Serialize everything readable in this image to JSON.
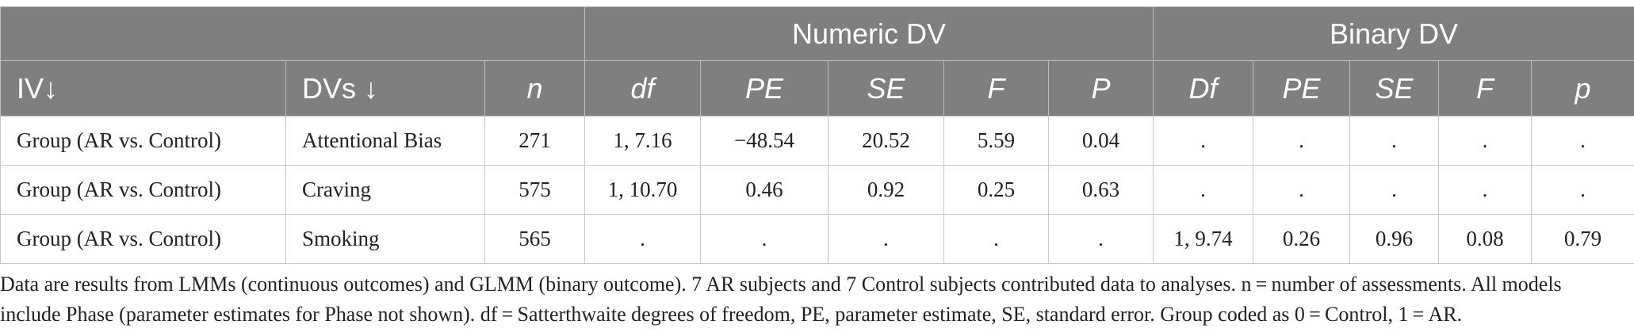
{
  "table": {
    "group_headers": {
      "numeric": "Numeric DV",
      "binary": "Binary DV"
    },
    "columns": [
      "IV↓",
      "DVs ↓",
      "n",
      "df",
      "PE",
      "SE",
      "F",
      "P",
      "Df",
      "PE",
      "SE",
      "F",
      "p"
    ],
    "rows": [
      [
        "Group (AR vs. Control)",
        "Attentional Bias",
        "271",
        "1, 7.16",
        "−48.54",
        "20.52",
        "5.59",
        "0.04",
        ".",
        ".",
        ".",
        ".",
        "."
      ],
      [
        "Group (AR vs. Control)",
        "Craving",
        "575",
        "1, 10.70",
        "0.46",
        "0.92",
        "0.25",
        "0.63",
        ".",
        ".",
        ".",
        ".",
        "."
      ],
      [
        "Group (AR vs. Control)",
        "Smoking",
        "565",
        ".",
        ".",
        ".",
        ".",
        ".",
        "1, 9.74",
        "0.26",
        "0.96",
        "0.08",
        "0.79"
      ]
    ]
  },
  "notes": {
    "line1": "Data are results from LMMs (continuous outcomes) and GLMM (binary outcome). 7 AR subjects and 7 Control subjects contributed data to analyses. n = number of assessments. All models",
    "line2": "include Phase (parameter estimates for Phase not shown). df = Satterthwaite degrees of freedom, PE, parameter estimate, SE, standard error. Group coded as 0 = Control, 1 = AR."
  }
}
